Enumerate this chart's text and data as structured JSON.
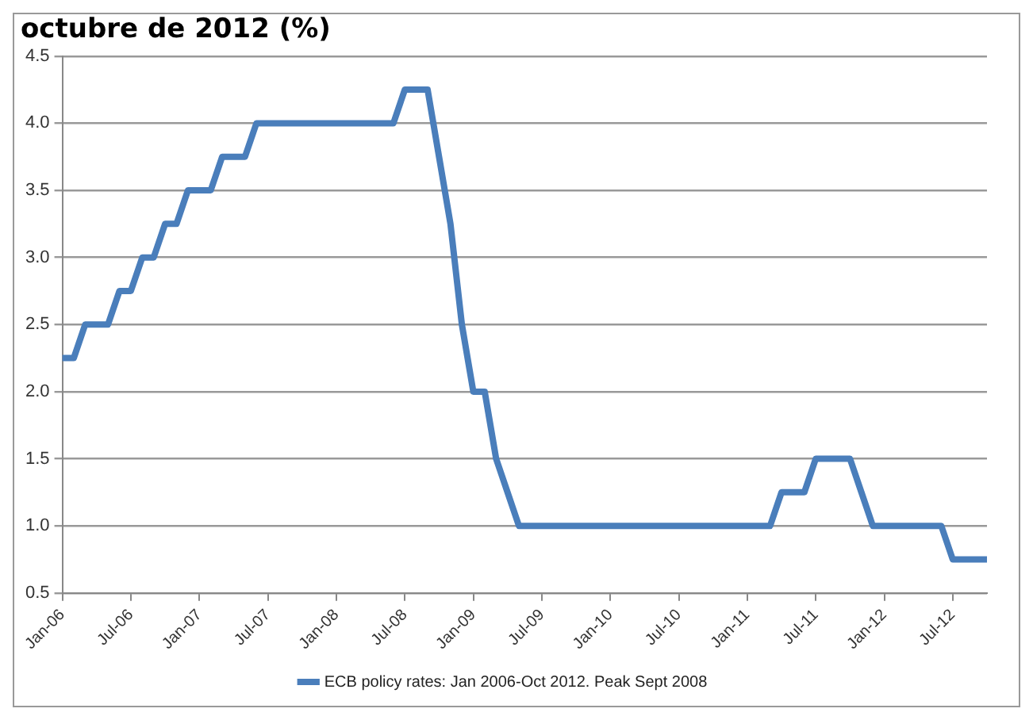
{
  "chart_data": {
    "type": "line",
    "title": "octubre de 2012 (%)",
    "categories": [
      "Jan-06",
      null,
      null,
      null,
      null,
      null,
      "Jul-06",
      null,
      null,
      null,
      null,
      null,
      "Jan-07",
      null,
      null,
      null,
      null,
      null,
      "Jul-07",
      null,
      null,
      null,
      null,
      null,
      "Jan-08",
      null,
      null,
      null,
      null,
      null,
      "Jul-08",
      null,
      null,
      null,
      null,
      null,
      "Jan-09",
      null,
      null,
      null,
      null,
      null,
      "Jul-09",
      null,
      null,
      null,
      null,
      null,
      "Jan-10",
      null,
      null,
      null,
      null,
      null,
      "Jul-10",
      null,
      null,
      null,
      null,
      null,
      "Jan-11",
      null,
      null,
      null,
      null,
      null,
      "Jul-11",
      null,
      null,
      null,
      null,
      null,
      "Jan-12",
      null,
      null,
      null,
      null,
      null,
      "Jul-12",
      null,
      null,
      null
    ],
    "series": [
      {
        "name": "ECB policy rates: Jan 2006-Oct 2012. Peak Sept 2008",
        "color": "#4a7ebb",
        "values": [
          2.25,
          2.25,
          2.5,
          2.5,
          2.5,
          2.75,
          2.75,
          3.0,
          3.0,
          3.25,
          3.25,
          3.5,
          3.5,
          3.5,
          3.75,
          3.75,
          3.75,
          4.0,
          4.0,
          4.0,
          4.0,
          4.0,
          4.0,
          4.0,
          4.0,
          4.0,
          4.0,
          4.0,
          4.0,
          4.0,
          4.25,
          4.25,
          4.25,
          3.75,
          3.25,
          2.5,
          2.0,
          2.0,
          1.5,
          1.25,
          1.0,
          1.0,
          1.0,
          1.0,
          1.0,
          1.0,
          1.0,
          1.0,
          1.0,
          1.0,
          1.0,
          1.0,
          1.0,
          1.0,
          1.0,
          1.0,
          1.0,
          1.0,
          1.0,
          1.0,
          1.0,
          1.0,
          1.0,
          1.25,
          1.25,
          1.25,
          1.5,
          1.5,
          1.5,
          1.5,
          1.25,
          1.0,
          1.0,
          1.0,
          1.0,
          1.0,
          1.0,
          1.0,
          0.75,
          0.75,
          0.75,
          0.75
        ]
      }
    ],
    "ylim": [
      0.5,
      4.5
    ],
    "yticks": [
      0.5,
      {
        "value": 1,
        "label": "1.0"
      },
      1.5,
      {
        "value": 2,
        "label": "2.0"
      },
      2.5,
      {
        "value": 3,
        "label": "3.0"
      },
      3.5,
      {
        "value": 4,
        "label": "4.0"
      },
      4.5
    ],
    "grid": "y",
    "legend": "bottom",
    "marker": "none",
    "line_style": "solid"
  }
}
